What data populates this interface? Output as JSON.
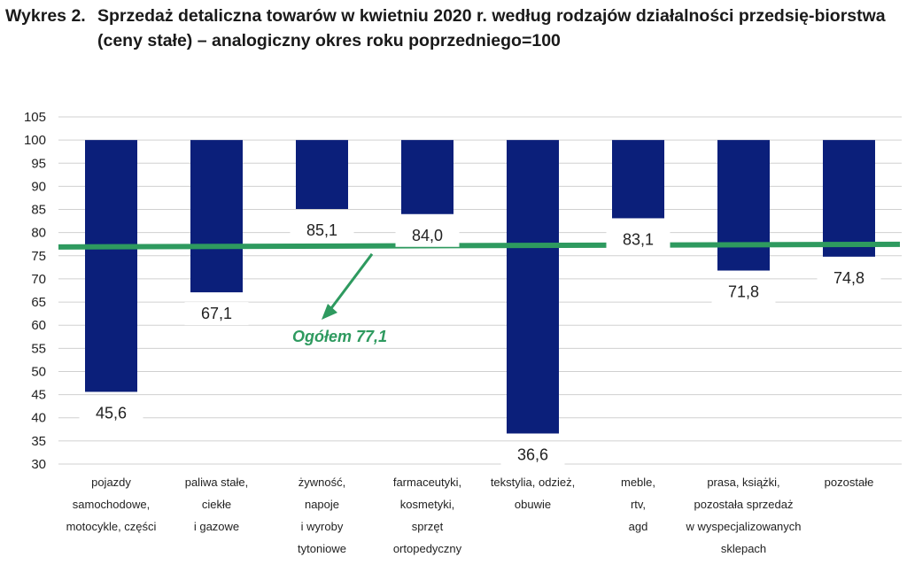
{
  "title": {
    "prefix": "Wykres 2.",
    "text": "Sprzedaż detaliczna towarów w kwietniu 2020 r. według rodzajów działalności przedsię-biorstwa (ceny stałe) – analogiczny okres roku poprzedniego=100"
  },
  "chart_data": {
    "type": "bar",
    "baseline": 100,
    "ylim": [
      30,
      105
    ],
    "yticks": [
      "105",
      "100",
      "95",
      "90",
      "85",
      "80",
      "75",
      "70",
      "65",
      "60",
      "55",
      "50",
      "45",
      "40",
      "35",
      "30"
    ],
    "grid": true,
    "categories": [
      [
        "pojazdy",
        "samochodowe,",
        "motocykle, części"
      ],
      [
        "paliwa stałe,",
        "ciekłe",
        "i gazowe"
      ],
      [
        "żywność,",
        "napoje",
        "i wyroby",
        "tytoniowe"
      ],
      [
        "farmaceutyki,",
        "kosmetyki,",
        "sprzęt",
        "ortopedyczny"
      ],
      [
        "tekstylia, odzież,",
        "obuwie"
      ],
      [
        "meble,",
        "rtv,",
        "agd"
      ],
      [
        "prasa, książki,",
        "pozostała sprzedaż",
        "w wyspecjalizowanych",
        "sklepach"
      ],
      [
        "pozostałe"
      ]
    ],
    "values": [
      45.6,
      67.1,
      85.1,
      84.0,
      36.6,
      83.1,
      71.8,
      74.8
    ],
    "value_labels": [
      "45,6",
      "67,1",
      "85,1",
      "84,0",
      "36,6",
      "83,1",
      "71,8",
      "74,8"
    ],
    "reference_line": {
      "value": 77.1,
      "label": "Ogółem 77,1"
    },
    "colors": {
      "bar": "#0b1f7a",
      "reference": "#2e9a5f",
      "grid": "#d0d0d0"
    }
  }
}
